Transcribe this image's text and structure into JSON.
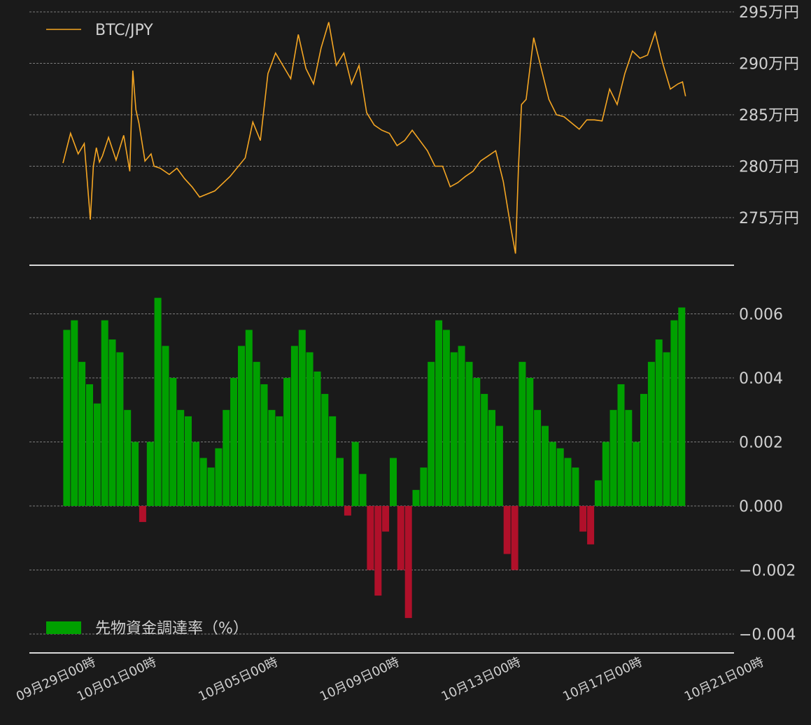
{
  "colors": {
    "background": "#1a1a1a",
    "price_line": "#f5a623",
    "positive_bar": "#00a000",
    "negative_bar": "#b0102a",
    "grid": "#9a9a9a",
    "text": "#d0d0d0"
  },
  "chart_data": [
    {
      "type": "line",
      "legend": "BTC/JPY",
      "legend_position": "top-left",
      "grid": true,
      "x_range": [
        0,
        22
      ],
      "ylim": [
        2705000,
        2950000
      ],
      "yticks": [
        {
          "value": 2750000,
          "label": "275万円"
        },
        {
          "value": 2800000,
          "label": "280万円"
        },
        {
          "value": 2850000,
          "label": "285万円"
        },
        {
          "value": 2900000,
          "label": "290万円"
        },
        {
          "value": 2950000,
          "label": "295万円"
        }
      ],
      "series": [
        {
          "name": "BTC/JPY",
          "x": [
            0.0,
            0.25,
            0.5,
            0.7,
            0.9,
            1.0,
            1.1,
            1.2,
            1.3,
            1.5,
            1.75,
            2.0,
            2.2,
            2.3,
            2.4,
            2.5,
            2.7,
            2.9,
            3.0,
            3.2,
            3.5,
            3.75,
            4.0,
            4.25,
            4.5,
            5.0,
            5.5,
            6.0,
            6.25,
            6.5,
            6.75,
            7.0,
            7.5,
            7.75,
            8.0,
            8.25,
            8.5,
            8.75,
            9.0,
            9.25,
            9.5,
            9.75,
            10.0,
            10.25,
            10.5,
            10.75,
            11.0,
            11.25,
            11.5,
            11.75,
            12.0,
            12.25,
            12.5,
            12.75,
            13.0,
            13.25,
            13.5,
            13.75,
            14.0,
            14.25,
            14.5,
            14.75,
            14.9,
            15.0,
            15.1,
            15.25,
            15.5,
            15.75,
            16.0,
            16.25,
            16.5,
            16.75,
            17.0,
            17.25,
            17.5,
            17.75,
            18.0,
            18.25,
            18.5,
            18.75,
            19.0,
            19.25,
            19.5,
            19.75,
            20.0,
            20.25,
            20.4,
            20.5
          ],
          "y": [
            2803000,
            2832000,
            2812000,
            2822000,
            2748000,
            2800000,
            2818000,
            2804000,
            2810000,
            2828000,
            2806000,
            2830000,
            2795000,
            2893000,
            2855000,
            2842000,
            2805000,
            2812000,
            2800000,
            2798000,
            2792000,
            2798000,
            2788000,
            2780000,
            2770000,
            2776000,
            2790000,
            2808000,
            2843000,
            2825000,
            2890000,
            2910000,
            2885000,
            2928000,
            2895000,
            2880000,
            2915000,
            2940000,
            2898000,
            2910000,
            2880000,
            2898000,
            2852000,
            2840000,
            2835000,
            2832000,
            2820000,
            2825000,
            2835000,
            2825000,
            2815000,
            2800000,
            2800000,
            2780000,
            2784000,
            2790000,
            2795000,
            2805000,
            2810000,
            2815000,
            2785000,
            2740000,
            2715000,
            2800000,
            2860000,
            2865000,
            2925000,
            2895000,
            2865000,
            2850000,
            2848000,
            2842000,
            2836000,
            2845000,
            2845000,
            2844000,
            2875000,
            2860000,
            2890000,
            2912000,
            2905000,
            2908000,
            2930000,
            2900000,
            2875000,
            2880000,
            2882000,
            2868000
          ]
        }
      ]
    },
    {
      "type": "bar",
      "legend": "先物資金調達率（%）",
      "legend_position": "bottom-left",
      "grid": true,
      "x_range": [
        0,
        22
      ],
      "ylim": [
        -0.0046,
        0.0072
      ],
      "yticks": [
        {
          "value": -0.004,
          "label": "−0.004"
        },
        {
          "value": -0.002,
          "label": "−0.002"
        },
        {
          "value": 0.0,
          "label": "0.000"
        },
        {
          "value": 0.002,
          "label": "0.002"
        },
        {
          "value": 0.004,
          "label": "0.004"
        },
        {
          "value": 0.006,
          "label": "0.006"
        }
      ],
      "series": [
        {
          "name": "先物資金調達率（%）",
          "x": [
            0.0,
            0.25,
            0.5,
            0.75,
            1.0,
            1.25,
            1.5,
            1.75,
            2.0,
            2.25,
            2.5,
            2.75,
            3.0,
            3.25,
            3.5,
            3.75,
            4.0,
            4.25,
            4.5,
            4.75,
            5.0,
            5.25,
            5.5,
            5.75,
            6.0,
            6.25,
            6.5,
            6.75,
            7.0,
            7.25,
            7.5,
            7.75,
            8.0,
            8.25,
            8.5,
            8.75,
            9.0,
            9.25,
            9.5,
            9.75,
            10.0,
            10.25,
            10.5,
            10.75,
            11.0,
            11.25,
            11.5,
            11.75,
            12.0,
            12.25,
            12.5,
            12.75,
            13.0,
            13.25,
            13.5,
            13.75,
            14.0,
            14.25,
            14.5,
            14.75,
            15.0,
            15.25,
            15.5,
            15.75,
            16.0,
            16.25,
            16.5,
            16.75,
            17.0,
            17.25,
            17.5,
            17.75,
            18.0,
            18.25,
            18.5,
            18.75,
            19.0,
            19.25,
            19.5,
            19.75,
            20.0,
            20.25
          ],
          "values": [
            0.0055,
            0.0058,
            0.0045,
            0.0038,
            0.0032,
            0.0058,
            0.0052,
            0.0048,
            0.003,
            0.002,
            -0.0005,
            0.002,
            0.0065,
            0.005,
            0.004,
            0.003,
            0.0028,
            0.002,
            0.0015,
            0.0012,
            0.0018,
            0.003,
            0.004,
            0.005,
            0.0055,
            0.0045,
            0.0038,
            0.003,
            0.0028,
            0.004,
            0.005,
            0.0055,
            0.0048,
            0.0042,
            0.0035,
            0.0028,
            0.0015,
            -0.0003,
            0.002,
            0.001,
            -0.002,
            -0.0028,
            -0.0008,
            0.0015,
            -0.002,
            -0.0035,
            0.0005,
            0.0012,
            0.0045,
            0.0058,
            0.0055,
            0.0048,
            0.005,
            0.0045,
            0.004,
            0.0035,
            0.003,
            0.0025,
            -0.0015,
            -0.002,
            0.0045,
            0.004,
            0.003,
            0.0025,
            0.002,
            0.0018,
            0.0015,
            0.0012,
            -0.0008,
            -0.0012,
            0.0008,
            0.002,
            0.003,
            0.0038,
            0.003,
            0.002,
            0.0035,
            0.0045,
            0.0052,
            0.0048,
            0.0058,
            0.0062
          ]
        }
      ]
    }
  ],
  "x_axis": {
    "ticks": [
      {
        "value": 0,
        "label": "09月29日00時"
      },
      {
        "value": 2,
        "label": "10月01日00時"
      },
      {
        "value": 6,
        "label": "10月05日00時"
      },
      {
        "value": 10,
        "label": "10月09日00時"
      },
      {
        "value": 14,
        "label": "10月13日00時"
      },
      {
        "value": 18,
        "label": "10月17日00時"
      },
      {
        "value": 22,
        "label": "10月21日00時"
      }
    ]
  }
}
